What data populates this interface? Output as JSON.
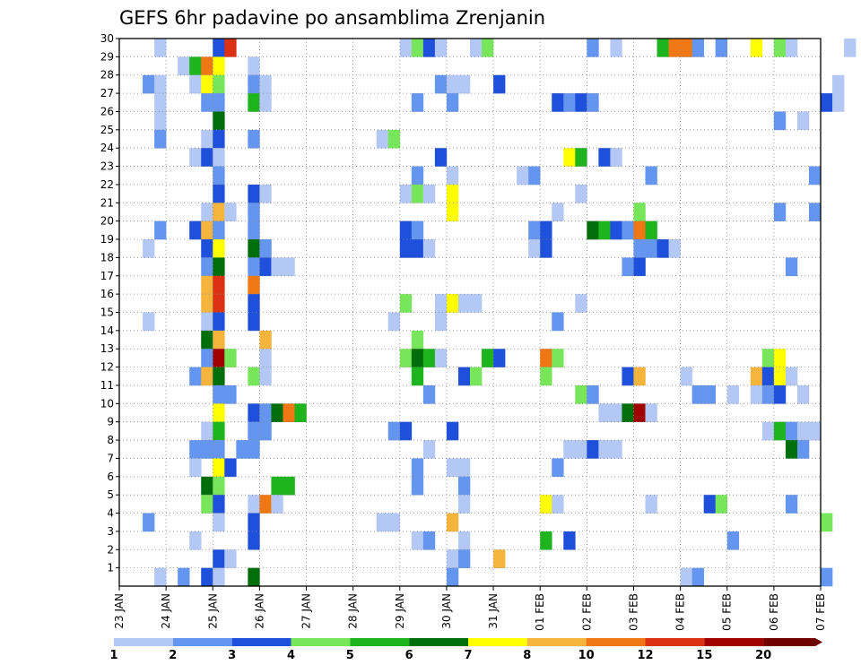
{
  "chart_data": {
    "type": "heatmap",
    "title": "GEFS 6hr padavine po ansamblima Zrenjanin",
    "xlabel": "",
    "ylabel": "",
    "x_ticks": [
      "23 JAN",
      "24 JAN",
      "25 JAN",
      "26 JAN",
      "27 JAN",
      "28 JAN",
      "29 JAN",
      "30 JAN",
      "31 JAN",
      "01 FEB",
      "02 FEB",
      "03 FEB",
      "04 FEB",
      "05 FEB",
      "06 FEB",
      "07 FEB"
    ],
    "y_ticks": [
      1,
      2,
      3,
      4,
      5,
      6,
      7,
      8,
      9,
      10,
      11,
      12,
      13,
      14,
      15,
      16,
      17,
      18,
      19,
      20,
      21,
      22,
      23,
      24,
      25,
      26,
      27,
      28,
      29,
      30
    ],
    "x_range_days": [
      0,
      15
    ],
    "y_range_members": [
      0,
      30
    ],
    "grid": true,
    "colorbar": {
      "placement": "bottom",
      "levels": [
        1,
        2,
        3,
        4,
        5,
        6,
        7,
        8,
        10,
        12,
        15,
        20
      ],
      "colors": [
        "#b4c8f5",
        "#6496f0",
        "#1e50dc",
        "#78e65a",
        "#1eb41e",
        "#006e0a",
        "#ffff00",
        "#f5b43c",
        "#f07814",
        "#dc3214",
        "#a00000",
        "#6e0000"
      ]
    },
    "cell_step_days": 0.25,
    "cells_note": "each cell = [member, time index (days/0.25 from 23 JAN), color class]",
    "cells": [
      [
        30,
        8,
        2
      ],
      [
        30,
        9,
        9
      ],
      [
        30,
        24,
        0
      ],
      [
        30,
        25,
        3
      ],
      [
        30,
        26,
        0
      ],
      [
        30,
        30,
        0
      ],
      [
        30,
        31,
        3
      ],
      [
        30,
        40,
        1
      ],
      [
        30,
        42,
        0
      ],
      [
        30,
        48,
        1
      ],
      [
        30,
        54,
        6
      ],
      [
        29,
        3,
        0
      ],
      [
        29,
        26,
        2
      ],
      [
        29,
        27,
        0
      ],
      [
        29,
        46,
        4
      ],
      [
        29,
        47,
        8
      ],
      [
        29,
        48,
        8
      ],
      [
        29,
        49,
        1
      ],
      [
        29,
        51,
        1
      ],
      [
        29,
        56,
        3
      ],
      [
        29,
        57,
        0
      ],
      [
        29,
        62,
        0
      ],
      [
        28,
        5,
        0
      ],
      [
        28,
        6,
        4
      ],
      [
        28,
        7,
        8
      ],
      [
        28,
        8,
        6
      ],
      [
        28,
        11,
        0
      ],
      [
        27,
        2,
        1
      ],
      [
        27,
        3,
        0
      ],
      [
        27,
        6,
        0
      ],
      [
        27,
        7,
        6
      ],
      [
        27,
        8,
        3
      ],
      [
        27,
        11,
        1
      ],
      [
        27,
        12,
        0
      ],
      [
        27,
        27,
        1
      ],
      [
        27,
        28,
        0
      ],
      [
        27,
        29,
        0
      ],
      [
        27,
        32,
        2
      ],
      [
        27,
        61,
        0
      ],
      [
        26,
        3,
        0
      ],
      [
        26,
        7,
        1
      ],
      [
        26,
        8,
        1
      ],
      [
        26,
        11,
        4
      ],
      [
        26,
        12,
        0
      ],
      [
        26,
        25,
        1
      ],
      [
        26,
        28,
        1
      ],
      [
        26,
        37,
        2
      ],
      [
        26,
        38,
        1
      ],
      [
        26,
        39,
        2
      ],
      [
        26,
        40,
        1
      ],
      [
        26,
        60,
        2
      ],
      [
        26,
        61,
        0
      ],
      [
        25,
        3,
        0
      ],
      [
        25,
        8,
        5
      ],
      [
        25,
        56,
        1
      ],
      [
        25,
        58,
        0
      ],
      [
        24,
        3,
        1
      ],
      [
        24,
        7,
        0
      ],
      [
        24,
        8,
        2
      ],
      [
        24,
        11,
        1
      ],
      [
        24,
        22,
        0
      ],
      [
        24,
        23,
        3
      ],
      [
        23,
        6,
        0
      ],
      [
        23,
        7,
        2
      ],
      [
        23,
        8,
        0
      ],
      [
        23,
        27,
        2
      ],
      [
        23,
        38,
        6
      ],
      [
        23,
        39,
        4
      ],
      [
        23,
        41,
        2
      ],
      [
        23,
        42,
        0
      ],
      [
        22,
        8,
        1
      ],
      [
        22,
        25,
        1
      ],
      [
        22,
        28,
        0
      ],
      [
        22,
        34,
        0
      ],
      [
        22,
        35,
        1
      ],
      [
        22,
        45,
        1
      ],
      [
        22,
        59,
        1
      ],
      [
        21,
        8,
        2
      ],
      [
        21,
        11,
        2
      ],
      [
        21,
        12,
        0
      ],
      [
        21,
        24,
        0
      ],
      [
        21,
        25,
        3
      ],
      [
        21,
        26,
        0
      ],
      [
        21,
        28,
        6
      ],
      [
        21,
        39,
        0
      ],
      [
        20,
        7,
        0
      ],
      [
        20,
        8,
        7
      ],
      [
        20,
        9,
        0
      ],
      [
        20,
        11,
        1
      ],
      [
        20,
        28,
        6
      ],
      [
        20,
        37,
        0
      ],
      [
        20,
        44,
        3
      ],
      [
        20,
        56,
        1
      ],
      [
        20,
        59,
        1
      ],
      [
        19,
        3,
        1
      ],
      [
        19,
        6,
        2
      ],
      [
        19,
        7,
        7
      ],
      [
        19,
        8,
        1
      ],
      [
        19,
        11,
        1
      ],
      [
        19,
        24,
        2
      ],
      [
        19,
        25,
        1
      ],
      [
        19,
        35,
        1
      ],
      [
        19,
        36,
        2
      ],
      [
        19,
        40,
        5
      ],
      [
        19,
        41,
        4
      ],
      [
        19,
        42,
        2
      ],
      [
        19,
        43,
        1
      ],
      [
        19,
        44,
        8
      ],
      [
        19,
        45,
        4
      ],
      [
        18,
        2,
        0
      ],
      [
        18,
        7,
        2
      ],
      [
        18,
        8,
        6
      ],
      [
        18,
        11,
        5
      ],
      [
        18,
        12,
        1
      ],
      [
        18,
        24,
        2
      ],
      [
        18,
        25,
        2
      ],
      [
        18,
        26,
        0
      ],
      [
        18,
        35,
        0
      ],
      [
        18,
        36,
        2
      ],
      [
        18,
        44,
        1
      ],
      [
        18,
        45,
        1
      ],
      [
        18,
        46,
        2
      ],
      [
        18,
        47,
        0
      ],
      [
        17,
        7,
        1
      ],
      [
        17,
        8,
        5
      ],
      [
        17,
        11,
        1
      ],
      [
        17,
        12,
        2
      ],
      [
        17,
        13,
        0
      ],
      [
        17,
        14,
        0
      ],
      [
        17,
        43,
        1
      ],
      [
        17,
        44,
        2
      ],
      [
        17,
        57,
        1
      ],
      [
        16,
        7,
        7
      ],
      [
        16,
        8,
        9
      ],
      [
        16,
        11,
        8
      ],
      [
        15,
        7,
        7
      ],
      [
        15,
        8,
        9
      ],
      [
        15,
        11,
        2
      ],
      [
        15,
        24,
        3
      ],
      [
        15,
        27,
        0
      ],
      [
        15,
        28,
        6
      ],
      [
        15,
        29,
        0
      ],
      [
        15,
        30,
        0
      ],
      [
        15,
        39,
        0
      ],
      [
        14,
        2,
        0
      ],
      [
        14,
        7,
        0
      ],
      [
        14,
        8,
        2
      ],
      [
        14,
        11,
        2
      ],
      [
        14,
        23,
        0
      ],
      [
        14,
        27,
        0
      ],
      [
        14,
        37,
        1
      ],
      [
        13,
        7,
        5
      ],
      [
        13,
        8,
        7
      ],
      [
        13,
        12,
        7
      ],
      [
        13,
        25,
        3
      ],
      [
        12,
        7,
        1
      ],
      [
        12,
        8,
        10
      ],
      [
        12,
        9,
        3
      ],
      [
        12,
        12,
        0
      ],
      [
        12,
        24,
        3
      ],
      [
        12,
        25,
        5
      ],
      [
        12,
        26,
        4
      ],
      [
        12,
        27,
        0
      ],
      [
        12,
        31,
        4
      ],
      [
        12,
        32,
        2
      ],
      [
        12,
        36,
        8
      ],
      [
        12,
        37,
        3
      ],
      [
        12,
        55,
        3
      ],
      [
        12,
        56,
        6
      ],
      [
        11,
        6,
        1
      ],
      [
        11,
        7,
        7
      ],
      [
        11,
        8,
        5
      ],
      [
        11,
        11,
        3
      ],
      [
        11,
        12,
        0
      ],
      [
        11,
        25,
        4
      ],
      [
        11,
        29,
        2
      ],
      [
        11,
        30,
        3
      ],
      [
        11,
        36,
        3
      ],
      [
        11,
        43,
        2
      ],
      [
        11,
        44,
        7
      ],
      [
        11,
        48,
        0
      ],
      [
        11,
        54,
        7
      ],
      [
        11,
        55,
        2
      ],
      [
        11,
        56,
        6
      ],
      [
        11,
        57,
        0
      ],
      [
        10,
        8,
        1
      ],
      [
        10,
        9,
        1
      ],
      [
        10,
        26,
        1
      ],
      [
        10,
        39,
        3
      ],
      [
        10,
        40,
        1
      ],
      [
        10,
        49,
        1
      ],
      [
        10,
        50,
        1
      ],
      [
        10,
        52,
        0
      ],
      [
        10,
        54,
        0
      ],
      [
        10,
        55,
        1
      ],
      [
        10,
        56,
        2
      ],
      [
        10,
        58,
        0
      ],
      [
        9,
        8,
        6
      ],
      [
        9,
        11,
        2
      ],
      [
        9,
        12,
        1
      ],
      [
        9,
        13,
        5
      ],
      [
        9,
        14,
        8
      ],
      [
        9,
        15,
        4
      ],
      [
        9,
        41,
        0
      ],
      [
        9,
        42,
        0
      ],
      [
        9,
        43,
        5
      ],
      [
        9,
        44,
        10
      ],
      [
        9,
        45,
        0
      ],
      [
        8,
        7,
        0
      ],
      [
        8,
        8,
        4
      ],
      [
        8,
        11,
        1
      ],
      [
        8,
        12,
        1
      ],
      [
        8,
        23,
        1
      ],
      [
        8,
        24,
        2
      ],
      [
        8,
        28,
        2
      ],
      [
        8,
        55,
        0
      ],
      [
        8,
        56,
        4
      ],
      [
        8,
        57,
        1
      ],
      [
        8,
        58,
        0
      ],
      [
        8,
        59,
        0
      ],
      [
        7,
        6,
        1
      ],
      [
        7,
        7,
        1
      ],
      [
        7,
        8,
        1
      ],
      [
        7,
        10,
        1
      ],
      [
        7,
        11,
        1
      ],
      [
        7,
        26,
        0
      ],
      [
        7,
        38,
        0
      ],
      [
        7,
        39,
        0
      ],
      [
        7,
        40,
        2
      ],
      [
        7,
        41,
        0
      ],
      [
        7,
        42,
        0
      ],
      [
        7,
        57,
        5
      ],
      [
        7,
        58,
        1
      ],
      [
        6,
        6,
        0
      ],
      [
        6,
        8,
        6
      ],
      [
        6,
        9,
        2
      ],
      [
        6,
        25,
        1
      ],
      [
        6,
        28,
        0
      ],
      [
        6,
        29,
        0
      ],
      [
        6,
        37,
        1
      ],
      [
        5,
        7,
        5
      ],
      [
        5,
        8,
        3
      ],
      [
        5,
        13,
        4
      ],
      [
        5,
        14,
        4
      ],
      [
        5,
        25,
        1
      ],
      [
        5,
        29,
        1
      ],
      [
        4,
        7,
        3
      ],
      [
        4,
        8,
        2
      ],
      [
        4,
        11,
        0
      ],
      [
        4,
        12,
        8
      ],
      [
        4,
        13,
        0
      ],
      [
        4,
        29,
        0
      ],
      [
        4,
        36,
        6
      ],
      [
        4,
        37,
        0
      ],
      [
        4,
        45,
        0
      ],
      [
        4,
        50,
        2
      ],
      [
        4,
        51,
        3
      ],
      [
        4,
        57,
        1
      ],
      [
        3,
        2,
        1
      ],
      [
        3,
        8,
        0
      ],
      [
        3,
        11,
        2
      ],
      [
        3,
        22,
        0
      ],
      [
        3,
        23,
        0
      ],
      [
        3,
        28,
        7
      ],
      [
        3,
        60,
        3
      ],
      [
        2,
        6,
        0
      ],
      [
        2,
        11,
        2
      ],
      [
        2,
        25,
        0
      ],
      [
        2,
        26,
        1
      ],
      [
        2,
        29,
        0
      ],
      [
        2,
        36,
        4
      ],
      [
        2,
        38,
        2
      ],
      [
        2,
        52,
        1
      ],
      [
        1,
        8,
        2
      ],
      [
        1,
        9,
        0
      ],
      [
        1,
        28,
        0
      ],
      [
        1,
        29,
        1
      ],
      [
        1,
        32,
        7
      ],
      [
        0,
        3,
        0
      ],
      [
        0,
        5,
        1
      ],
      [
        0,
        7,
        2
      ],
      [
        0,
        8,
        0
      ],
      [
        0,
        11,
        5
      ],
      [
        0,
        28,
        1
      ],
      [
        0,
        48,
        0
      ],
      [
        0,
        49,
        1
      ],
      [
        0,
        60,
        1
      ]
    ]
  }
}
